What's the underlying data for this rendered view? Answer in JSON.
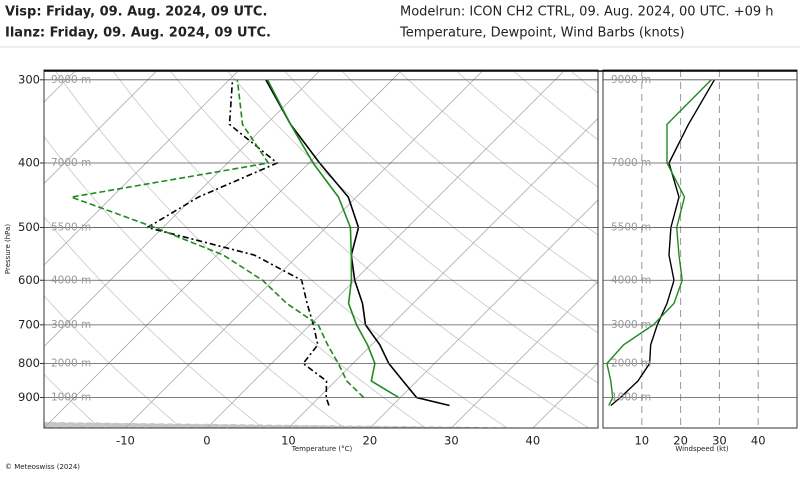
{
  "chart_data": [
    {
      "type": "skewt",
      "title": "Modelrun: ICON CH2 CTRL, 09. Aug. 2024, 00 UTC. +09 h",
      "subtitle": "Temperature, Dewpoint, Wind Barbs (knots)",
      "source": "© Meteoswiss (2024)",
      "xlabel": "Temperature (°C)",
      "ylabel": "Pressure (hPa)",
      "y": [
        925,
        900,
        850,
        800,
        750,
        700,
        650,
        600,
        550,
        500,
        450,
        400,
        350,
        300
      ],
      "ylim": [
        1000,
        290
      ],
      "yticks": [
        300,
        400,
        500,
        600,
        700,
        800,
        900
      ],
      "log_y": true,
      "xlim": [
        -20,
        48
      ],
      "xticks": [
        -10,
        0,
        10,
        20,
        30,
        40
      ],
      "height_labels": [
        {
          "value": 300,
          "label": "9000 m"
        },
        {
          "value": 400,
          "label": "7000 m"
        },
        {
          "value": 500,
          "label": "5500 m"
        },
        {
          "value": 600,
          "label": "4000 m"
        },
        {
          "value": 700,
          "label": "3000 m"
        },
        {
          "value": 800,
          "label": "2000 m"
        },
        {
          "value": 900,
          "label": "1000 m"
        }
      ],
      "series": [
        {
          "name": "Visp: Friday, 09. Aug. 2024, 09 UTC.",
          "color": "#000000",
          "values": [
            27,
            22,
            18.3,
            14.4,
            11,
            6.8,
            3.8,
            0,
            -3.5,
            -6,
            -11,
            -18.7,
            -27,
            -35.5
          ],
          "dewpoint": [
            12.2,
            10.9,
            8.9,
            3.9,
            3.4,
            0.4,
            -3,
            -6.5,
            -15.4,
            -31.9,
            -29.4,
            -23.9,
            -34.5,
            -39.6
          ]
        },
        {
          "name": "Ilanz: Friday, 09. Aug. 2024, 09 UTC.",
          "color": "#1f8a1f",
          "values": [
            null,
            19.8,
            14.4,
            12.7,
            9.5,
            5.7,
            2.1,
            -0.4,
            -3.5,
            -7,
            -12.2,
            -19.5,
            -27,
            -35.3
          ],
          "dewpoint": [
            null,
            15.5,
            11.4,
            8.2,
            4.6,
            1,
            -5.5,
            -11.3,
            -19.2,
            -31,
            -45,
            -25,
            -32.9,
            -39
          ]
        }
      ]
    },
    {
      "type": "line",
      "xlabel": "Windspeed (kt)",
      "y": [
        925,
        900,
        850,
        800,
        750,
        700,
        650,
        600,
        550,
        500,
        450,
        400,
        350,
        300
      ],
      "ylim": [
        1000,
        290
      ],
      "log_y": true,
      "xlim": [
        0,
        50
      ],
      "xticks": [
        10,
        20,
        30,
        40
      ],
      "grid": true,
      "height_labels": [
        {
          "value": 300,
          "label": "9000 m"
        },
        {
          "value": 400,
          "label": "7000 m"
        },
        {
          "value": 500,
          "label": "5500 m"
        },
        {
          "value": 600,
          "label": "4000 m"
        },
        {
          "value": 700,
          "label": "3000 m"
        },
        {
          "value": 800,
          "label": "2000 m"
        },
        {
          "value": 900,
          "label": "1000 m"
        }
      ],
      "series": [
        {
          "color": "#000000",
          "values": [
            2,
            4.5,
            9,
            12,
            12.3,
            14,
            16.5,
            18.3,
            17,
            17.5,
            19.6,
            17,
            22,
            28.7
          ]
        },
        {
          "color": "#1f8a1f",
          "values": [
            1.5,
            2.5,
            2,
            1,
            5.3,
            13,
            18.3,
            20.4,
            19.6,
            19,
            21,
            16.5,
            16.5,
            27.9
          ]
        }
      ]
    }
  ]
}
